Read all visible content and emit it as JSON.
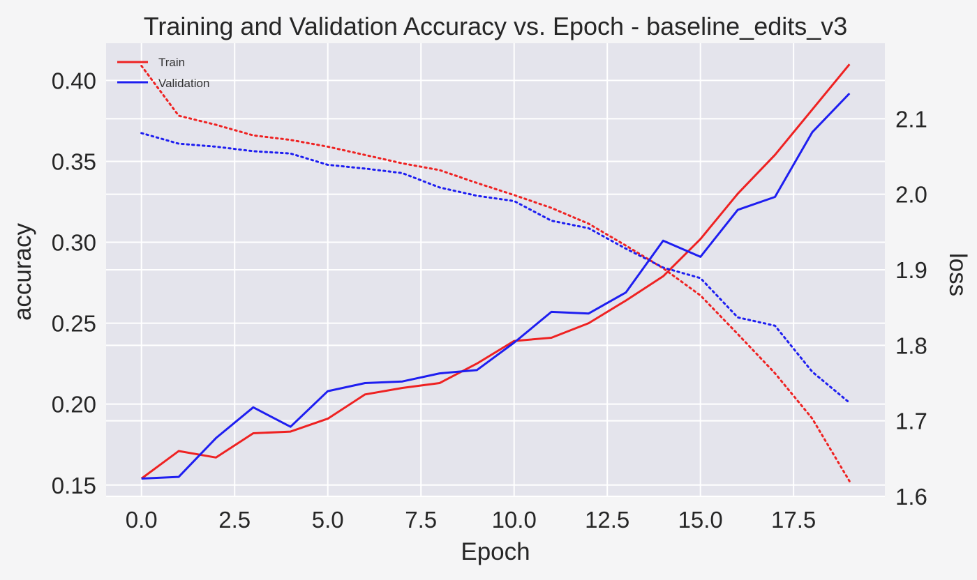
{
  "chart_data": {
    "type": "line",
    "title": "Training and Validation Accuracy vs. Epoch - baseline_edits_v3",
    "xlabel": "Epoch",
    "ylabel": "accuracy",
    "y2label": "loss",
    "xlim": [
      -0.95,
      19.95
    ],
    "ylim": [
      0.143,
      0.423
    ],
    "y2lim": [
      1.6,
      2.2
    ],
    "xticks": [
      0.0,
      2.5,
      5.0,
      7.5,
      10.0,
      12.5,
      15.0,
      17.5
    ],
    "xtick_labels": [
      "0.0",
      "2.5",
      "5.0",
      "7.5",
      "10.0",
      "12.5",
      "15.0",
      "17.5"
    ],
    "yticks": [
      0.15,
      0.2,
      0.25,
      0.3,
      0.35,
      0.4
    ],
    "ytick_labels": [
      "0.15",
      "0.20",
      "0.25",
      "0.30",
      "0.35",
      "0.40"
    ],
    "y2ticks": [
      1.6,
      1.7,
      1.8,
      1.9,
      2.0,
      2.1
    ],
    "y2tick_labels": [
      "1.6",
      "1.7",
      "1.8",
      "1.9",
      "2.0",
      "2.1"
    ],
    "grid": true,
    "legend_position": "upper-left",
    "x": [
      0,
      1,
      2,
      3,
      4,
      5,
      6,
      7,
      8,
      9,
      10,
      11,
      12,
      13,
      14,
      15,
      16,
      17,
      18,
      19
    ],
    "series": [
      {
        "name": "Train",
        "axis": "left",
        "style": "solid",
        "color": "#ee2222",
        "values": [
          0.154,
          0.171,
          0.167,
          0.182,
          0.183,
          0.191,
          0.206,
          0.21,
          0.213,
          0.225,
          0.239,
          0.241,
          0.25,
          0.264,
          0.279,
          0.302,
          0.33,
          0.354,
          0.382,
          0.41
        ]
      },
      {
        "name": "Validation",
        "axis": "left",
        "style": "solid",
        "color": "#1e1ef0",
        "values": [
          0.154,
          0.155,
          0.179,
          0.198,
          0.186,
          0.208,
          0.213,
          0.214,
          0.219,
          0.221,
          0.238,
          0.257,
          0.256,
          0.269,
          0.301,
          0.291,
          0.32,
          0.328,
          0.368,
          0.392
        ]
      },
      {
        "axis": "right",
        "style": "dotted",
        "color": "#ee2222",
        "values": [
          2.17,
          2.104,
          2.092,
          2.078,
          2.072,
          2.063,
          2.052,
          2.041,
          2.032,
          2.015,
          1.999,
          1.982,
          1.961,
          1.932,
          1.902,
          1.866,
          1.815,
          1.763,
          1.703,
          1.62
        ]
      },
      {
        "axis": "right",
        "style": "dotted",
        "color": "#1e1ef0",
        "values": [
          2.081,
          2.067,
          2.063,
          2.057,
          2.054,
          2.039,
          2.034,
          2.028,
          2.009,
          1.998,
          1.991,
          1.965,
          1.955,
          1.928,
          1.903,
          1.889,
          1.837,
          1.826,
          1.765,
          1.724
        ]
      }
    ],
    "background": "#e4e4ec",
    "grid_color": "#ffffff"
  }
}
